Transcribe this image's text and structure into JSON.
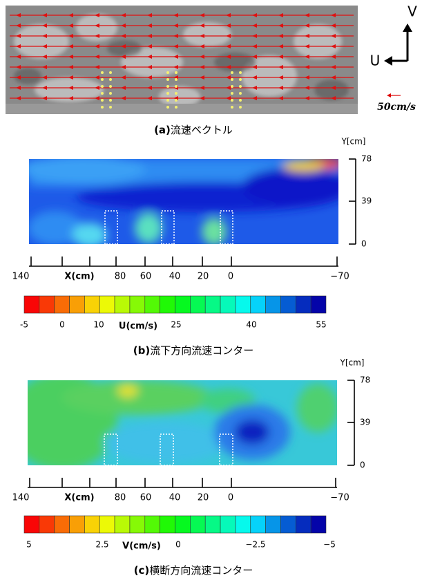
{
  "panel_a": {
    "caption_label": "(a)",
    "caption": "流速ベクトル",
    "axis_v": "V",
    "axis_u": "U",
    "scale": "50cm/s"
  },
  "panel_b": {
    "y_axis_title": "Y[cm]",
    "y_ticks": [
      "78",
      "39",
      "0"
    ],
    "x_ticks": [
      "140",
      "80",
      "60",
      "40",
      "20",
      "0",
      "−70"
    ],
    "x_axis_title": "X(cm)",
    "colorbar_ticks": [
      "-5",
      "0",
      "10",
      "25",
      "40",
      "55"
    ],
    "colorbar_title": "U(cm/s)",
    "caption_label": "(b)",
    "caption": "流下方向流速コンター"
  },
  "panel_c": {
    "y_axis_title": "Y[cm]",
    "y_ticks": [
      "78",
      "39",
      "0"
    ],
    "x_ticks": [
      "140",
      "80",
      "60",
      "40",
      "20",
      "0",
      "−70"
    ],
    "x_axis_title": "X(cm)",
    "colorbar_ticks": [
      "5",
      "2.5",
      "0",
      "−2.5",
      "−5"
    ],
    "colorbar_title": "V(cm/s)",
    "caption_label": "(c)",
    "caption": "横断方向流速コンター"
  }
}
